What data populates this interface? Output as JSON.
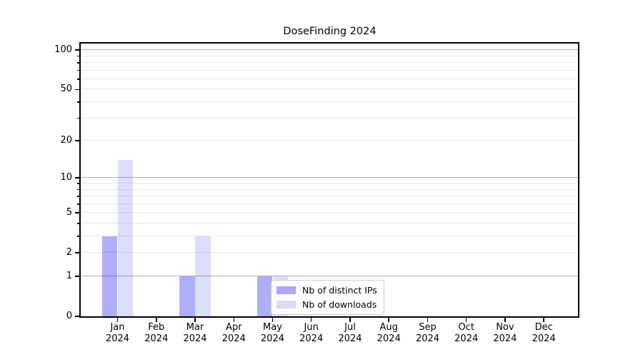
{
  "window": {
    "background": "#ffffff"
  },
  "chart_data": {
    "type": "bar",
    "title": "DoseFinding 2024",
    "categories": [
      {
        "m": "Jan",
        "y": "2024"
      },
      {
        "m": "Feb",
        "y": "2024"
      },
      {
        "m": "Mar",
        "y": "2024"
      },
      {
        "m": "Apr",
        "y": "2024"
      },
      {
        "m": "May",
        "y": "2024"
      },
      {
        "m": "Jun",
        "y": "2024"
      },
      {
        "m": "Jul",
        "y": "2024"
      },
      {
        "m": "Aug",
        "y": "2024"
      },
      {
        "m": "Sep",
        "y": "2024"
      },
      {
        "m": "Oct",
        "y": "2024"
      },
      {
        "m": "Nov",
        "y": "2024"
      },
      {
        "m": "Dec",
        "y": "2024"
      }
    ],
    "series": [
      {
        "name": "Nb of distinct IPs",
        "values": [
          3,
          0,
          1,
          0,
          1,
          0,
          0,
          0,
          0,
          0,
          0,
          0
        ],
        "color": "rgba(20,20,235,0.34)",
        "color_solid": "#aaaaf2",
        "offset": -0.2
      },
      {
        "name": "Nb of downloads",
        "values": [
          14,
          0,
          3,
          0,
          1,
          0,
          0,
          0,
          0,
          0,
          0,
          0
        ],
        "color": "rgba(20,20,235,0.145)",
        "color_solid": "#dcdcf8",
        "offset": 0.2
      }
    ],
    "bar_width": 0.4,
    "y_scale": "log10(1+x)",
    "ylim": [
      0,
      112
    ],
    "xlim": [
      -0.95,
      11.9
    ],
    "y_tick_labels": [
      100,
      50,
      20,
      10,
      5,
      2,
      1,
      0
    ],
    "y_major_gridlines": [
      1,
      10,
      100
    ],
    "y_minor_gridlines": [
      2,
      3,
      4,
      5,
      6,
      7,
      8,
      9,
      20,
      30,
      40,
      50,
      60,
      70,
      80,
      90
    ],
    "grid_major_color": "#b0b0b0",
    "grid_minor_color": "#e9e9e9",
    "legend_position": "lower center-left inside plot",
    "grid": "on"
  }
}
